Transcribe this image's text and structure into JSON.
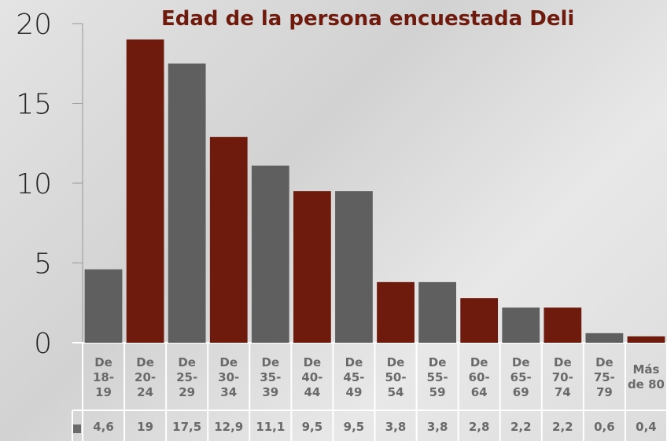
{
  "chart_data": {
    "type": "bar",
    "title": "Edad de la persona encuestada  Deli",
    "categories": [
      "De 18-19",
      "De 20-24",
      "De 25-29",
      "De 30-34",
      "De 35-39",
      "De 40-44",
      "De 45-49",
      "De 50-54",
      "De 55-59",
      "De 60-64",
      "De 65-69",
      "De 70-74",
      "De 75-79",
      "Más de 80"
    ],
    "values": [
      4.6,
      19,
      17.5,
      12.9,
      11.1,
      9.5,
      9.5,
      3.8,
      3.8,
      2.8,
      2.2,
      2.2,
      0.6,
      0.4
    ],
    "value_labels": [
      "4,6",
      "19",
      "17,5",
      "12,9",
      "11,1",
      "9,5",
      "9,5",
      "3,8",
      "3,8",
      "2,8",
      "2,2",
      "2,2",
      "0,6",
      "0,4"
    ],
    "colors": [
      "#5f5f5f",
      "#6e1a0c",
      "#5f5f5f",
      "#6e1a0c",
      "#5f5f5f",
      "#6e1a0c",
      "#5f5f5f",
      "#6e1a0c",
      "#5f5f5f",
      "#6e1a0c",
      "#5f5f5f",
      "#6e1a0c",
      "#5f5f5f",
      "#6e1a0c"
    ],
    "ylim": [
      0,
      20
    ],
    "yticks": [
      0,
      5,
      10,
      15,
      20
    ]
  }
}
